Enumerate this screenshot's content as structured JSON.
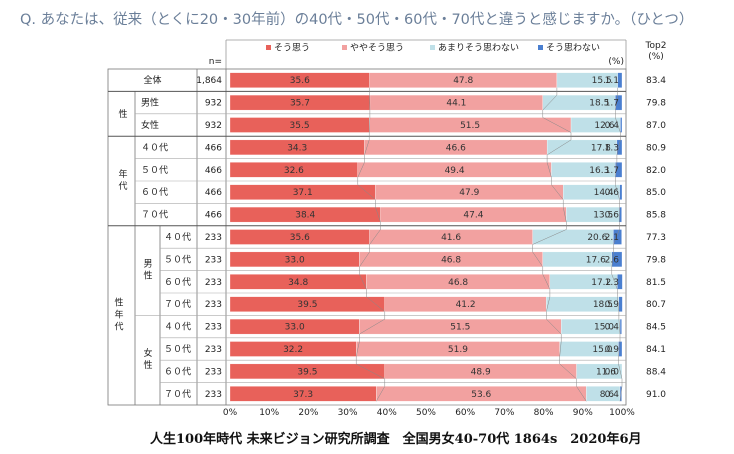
{
  "title": "Q. あなたは、従来（とくに20・30年前）の40代・50代・60代・70代と違うと感じますか。（ひとつ）",
  "footer": "人生100年時代 未来ビジョン研究所調査　全国男女40-70代 1864s　2020年6月",
  "n_header": "n=",
  "top2_header": "Top2",
  "top2_unit": "(%)",
  "pct_unit": "(%)",
  "colors": {
    "strong_agree": "#e8615a",
    "agree": "#f2a1a0",
    "disagree": "#bfe0e8",
    "strong_disagree": "#4a7fd0"
  },
  "group_labels": {
    "sex": "性",
    "age": [
      "年",
      "代"
    ],
    "sex_age": [
      "性",
      "年",
      "代"
    ],
    "male": [
      "男",
      "性"
    ],
    "female": [
      "女",
      "性"
    ]
  },
  "chart_data": {
    "type": "bar",
    "orientation": "horizontal",
    "stacked": "100%",
    "xlim": [
      0,
      100
    ],
    "x_ticks": [
      "0%",
      "10%",
      "20%",
      "30%",
      "40%",
      "50%",
      "60%",
      "70%",
      "80%",
      "90%",
      "100%"
    ],
    "legend": {
      "placement": "top",
      "entries": [
        "そう思う",
        "ややそう思う",
        "あまりそう思わない",
        "そう思わない"
      ]
    },
    "categories": [
      "全体",
      "男性",
      "女性",
      "４０代",
      "５０代",
      "６０代",
      "７０代",
      "４０代",
      "５０代",
      "６０代",
      "７０代",
      "４０代",
      "５０代",
      "６０代",
      "７０代"
    ],
    "n": [
      "1,864",
      "932",
      "932",
      "466",
      "466",
      "466",
      "466",
      "233",
      "233",
      "233",
      "233",
      "233",
      "233",
      "233",
      "233"
    ],
    "series": [
      {
        "name": "そう思う",
        "values": [
          35.6,
          35.7,
          35.5,
          34.3,
          32.6,
          37.1,
          38.4,
          35.6,
          33.0,
          34.8,
          39.5,
          33.0,
          32.2,
          39.5,
          37.3
        ]
      },
      {
        "name": "ややそう思う",
        "values": [
          47.8,
          44.1,
          51.5,
          46.6,
          49.4,
          47.9,
          47.4,
          41.6,
          46.8,
          46.8,
          41.2,
          51.5,
          51.9,
          48.9,
          53.6
        ]
      },
      {
        "name": "あまりそう思わない",
        "values": [
          15.5,
          18.5,
          12.6,
          17.8,
          16.3,
          14.4,
          13.5,
          20.6,
          17.6,
          17.2,
          18.5,
          15.0,
          15.0,
          11.6,
          8.6
        ]
      },
      {
        "name": "そう思わない",
        "values": [
          1.1,
          1.7,
          0.4,
          1.3,
          1.7,
          0.6,
          0.6,
          2.1,
          2.6,
          1.3,
          0.9,
          0.4,
          0.9,
          0.0,
          0.4
        ]
      }
    ],
    "top2": [
      "83.4",
      "79.8",
      "87.0",
      "80.9",
      "82.0",
      "85.0",
      "85.8",
      "77.3",
      "79.8",
      "81.5",
      "80.7",
      "84.5",
      "84.1",
      "88.4",
      "91.0"
    ]
  }
}
